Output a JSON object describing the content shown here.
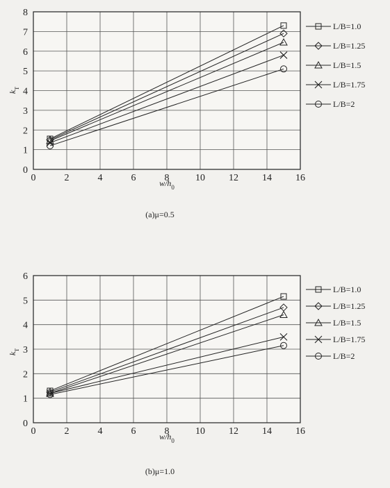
{
  "chart_data": [
    {
      "type": "line",
      "caption": "(a)μ=0.5",
      "xlabel": "w/h0",
      "ylabel": "kT",
      "xlim": [
        0,
        16
      ],
      "ylim": [
        0,
        8
      ],
      "xticks": [
        0,
        2,
        4,
        6,
        8,
        10,
        12,
        14,
        16
      ],
      "yticks": [
        0,
        1,
        2,
        3,
        4,
        5,
        6,
        7,
        8
      ],
      "grid": true,
      "legend_position": "right",
      "x": [
        1,
        15
      ],
      "series": [
        {
          "name": "L/B=1.0",
          "marker": "square",
          "values": [
            1.55,
            7.3
          ]
        },
        {
          "name": "L/B=1.25",
          "marker": "diamond",
          "values": [
            1.5,
            6.9
          ]
        },
        {
          "name": "L/B=1.5",
          "marker": "triangle",
          "values": [
            1.45,
            6.45
          ]
        },
        {
          "name": "L/B=1.75",
          "marker": "x",
          "values": [
            1.35,
            5.8
          ]
        },
        {
          "name": "L/B=2",
          "marker": "circle",
          "values": [
            1.2,
            5.1
          ]
        }
      ]
    },
    {
      "type": "line",
      "caption": "(b)μ=1.0",
      "xlabel": "w/h0",
      "ylabel": "kT",
      "xlim": [
        0,
        16
      ],
      "ylim": [
        0,
        6
      ],
      "xticks": [
        0,
        2,
        4,
        6,
        8,
        10,
        12,
        14,
        16
      ],
      "yticks": [
        0,
        1,
        2,
        3,
        4,
        5,
        6
      ],
      "grid": true,
      "legend_position": "right",
      "x": [
        1,
        15
      ],
      "series": [
        {
          "name": "L/B=1.0",
          "marker": "square",
          "values": [
            1.3,
            5.15
          ]
        },
        {
          "name": "L/B=1.25",
          "marker": "diamond",
          "values": [
            1.25,
            4.7
          ]
        },
        {
          "name": "L/B=1.5",
          "marker": "triangle",
          "values": [
            1.2,
            4.4
          ]
        },
        {
          "name": "L/B=1.75",
          "marker": "x",
          "values": [
            1.2,
            3.5
          ]
        },
        {
          "name": "L/B=2",
          "marker": "circle",
          "values": [
            1.15,
            3.15
          ]
        }
      ]
    }
  ]
}
